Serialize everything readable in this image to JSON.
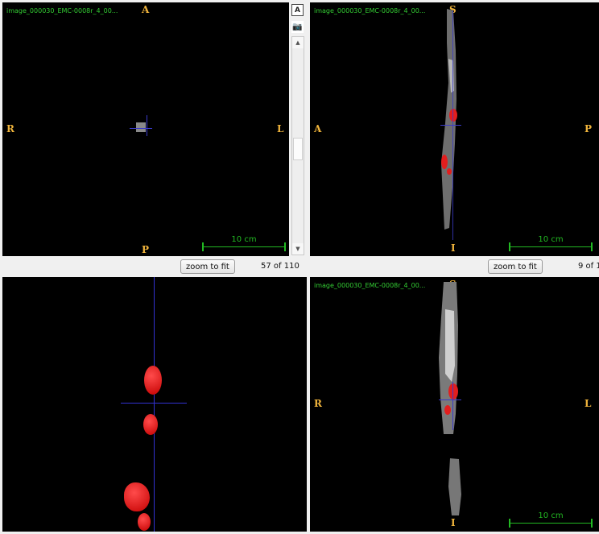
{
  "viewports": {
    "axial": {
      "title": "image_000030_EMC-0008r_4_00...",
      "top": "A",
      "bottom": "P",
      "left": "R",
      "right": "L",
      "scale": "10 cm"
    },
    "sagittal": {
      "title": "image_000030_EMC-0008r_4_00...",
      "top": "S",
      "bottom": "I",
      "left": "A",
      "right": "P",
      "scale": "10 cm"
    },
    "render3d": {},
    "coronal": {
      "title": "image_000030_EMC-0008r_4_00...",
      "top": "S",
      "bottom": "I",
      "left": "R",
      "right": "L",
      "scale": "10 cm"
    }
  },
  "toolbar": {
    "annotation_icon_glyph": "A",
    "camera_icon_glyph": "📷"
  },
  "scrollbar": {
    "up_glyph": "▲",
    "down_glyph": "▼"
  },
  "controls": {
    "zoom_label": "zoom to fit",
    "axial_slice": "57 of 110",
    "sagittal_slice": "9 of 1"
  },
  "colors": {
    "label": "#f0b43c",
    "title": "#33cc33",
    "scale": "#22b922",
    "crosshair": "#3a3ac8",
    "segmentation": "#e21e1e"
  }
}
